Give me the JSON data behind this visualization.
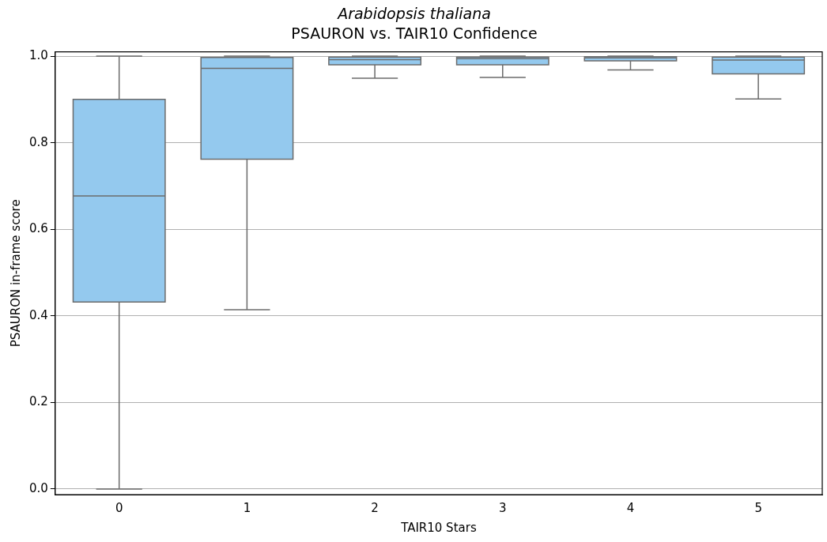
{
  "chart_data": {
    "type": "box",
    "title": "Arabidopsis thaliana",
    "subtitle": "PSAURON vs. TAIR10 Confidence",
    "xlabel": "TAIR10 Stars",
    "ylabel": "PSAURON in-frame score",
    "categories": [
      "0",
      "1",
      "2",
      "3",
      "4",
      "5"
    ],
    "color": "#94c9ee",
    "boxes": [
      {
        "low": 0,
        "q1": 0.432,
        "median": 0.677,
        "q3": 0.9,
        "high": 1
      },
      {
        "low": 0.414,
        "q1": 0.762,
        "median": 0.972,
        "q3": 0.997,
        "high": 1
      },
      {
        "low": 0.949,
        "q1": 0.98,
        "median": 0.992,
        "q3": 0.998,
        "high": 1
      },
      {
        "low": 0.951,
        "q1": 0.98,
        "median": 0.994,
        "q3": 0.998,
        "high": 1
      },
      {
        "low": 0.968,
        "q1": 0.989,
        "median": 0.996,
        "q3": 0.999,
        "high": 1
      },
      {
        "low": 0.901,
        "q1": 0.959,
        "median": 0.991,
        "q3": 0.998,
        "high": 1
      }
    ],
    "ylim": [
      -0.013,
      1.01
    ],
    "yticks": [
      {
        "value": 0,
        "label": "0.0"
      },
      0.2,
      0.4,
      0.6,
      0.8,
      {
        "value": 1,
        "label": "1.0"
      }
    ],
    "grid": "y"
  }
}
